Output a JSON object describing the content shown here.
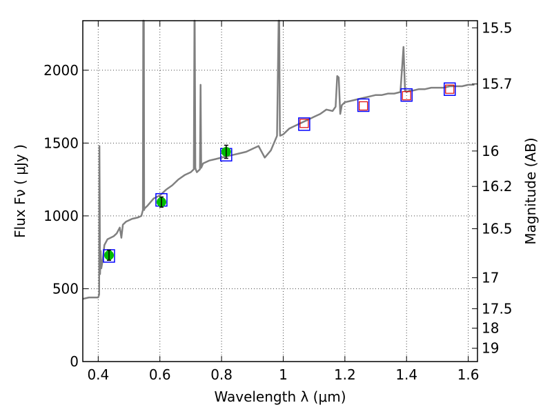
{
  "chart_data": {
    "type": "line",
    "xlabel": "Wavelength  λ (μm)",
    "ylabel": "Flux  Fν  ( μJy )",
    "y2label": "Magnitude (AB)",
    "xlim": [
      0.35,
      1.63
    ],
    "ylim": [
      0,
      2340
    ],
    "grid": true,
    "x_ticks": [
      0.4,
      0.6,
      0.8,
      1.0,
      1.2,
      1.4,
      1.6
    ],
    "x_tick_labels": [
      "0.4",
      "0.6",
      "0.8",
      "1",
      "1.2",
      "1.4",
      "1.6"
    ],
    "y_ticks": [
      0,
      500,
      1000,
      1500,
      2000
    ],
    "y_tick_labels": [
      "0",
      "500",
      "1000",
      "1500",
      "2000"
    ],
    "y2_ticks": [
      15.5,
      15.7,
      16,
      16.2,
      16.5,
      17,
      17.5,
      18,
      19
    ],
    "y2_tick_labels": [
      "15.5",
      "15.7",
      "16",
      "16.2",
      "16.5",
      "17",
      "17.5",
      "18",
      "19"
    ],
    "colors": {
      "spectrum": "#808080",
      "observed_fill": "#00bb00",
      "model_box": "#0000ff",
      "nir_box": "#dd0000",
      "grid": "#444444"
    },
    "spectrum": {
      "x": [
        0.35,
        0.37,
        0.39,
        0.4,
        0.403,
        0.404,
        0.406,
        0.408,
        0.41,
        0.415,
        0.42,
        0.43,
        0.44,
        0.45,
        0.46,
        0.47,
        0.475,
        0.48,
        0.49,
        0.5,
        0.51,
        0.52,
        0.53,
        0.54,
        0.545,
        0.546,
        0.548,
        0.549,
        0.55,
        0.56,
        0.58,
        0.6,
        0.62,
        0.64,
        0.66,
        0.68,
        0.7,
        0.71,
        0.712,
        0.713,
        0.715,
        0.716,
        0.72,
        0.73,
        0.732,
        0.734,
        0.736,
        0.74,
        0.76,
        0.78,
        0.8,
        0.82,
        0.84,
        0.86,
        0.88,
        0.9,
        0.92,
        0.94,
        0.96,
        0.98,
        0.985,
        0.987,
        0.989,
        0.99,
        1.0,
        1.02,
        1.04,
        1.06,
        1.08,
        1.1,
        1.12,
        1.14,
        1.16,
        1.17,
        1.175,
        1.18,
        1.185,
        1.19,
        1.2,
        1.22,
        1.24,
        1.26,
        1.28,
        1.3,
        1.32,
        1.34,
        1.36,
        1.38,
        1.39,
        1.395,
        1.4,
        1.41,
        1.42,
        1.44,
        1.46,
        1.48,
        1.5,
        1.52,
        1.54,
        1.56,
        1.58,
        1.6,
        1.62
      ],
      "y": [
        430,
        440,
        440,
        440,
        460,
        1480,
        600,
        760,
        640,
        700,
        800,
        840,
        850,
        860,
        880,
        920,
        850,
        940,
        960,
        970,
        980,
        985,
        990,
        1000,
        1040,
        2340,
        2340,
        1040,
        1050,
        1070,
        1120,
        1140,
        1180,
        1210,
        1250,
        1280,
        1300,
        1320,
        2340,
        2340,
        1330,
        1320,
        1300,
        1320,
        1900,
        1330,
        1340,
        1360,
        1380,
        1390,
        1400,
        1410,
        1420,
        1430,
        1440,
        1460,
        1480,
        1400,
        1450,
        1550,
        2340,
        2340,
        1600,
        1550,
        1560,
        1600,
        1620,
        1640,
        1660,
        1680,
        1700,
        1730,
        1720,
        1750,
        1960,
        1950,
        1700,
        1760,
        1780,
        1790,
        1800,
        1810,
        1820,
        1830,
        1830,
        1840,
        1840,
        1850,
        2160,
        1860,
        1850,
        1860,
        1860,
        1870,
        1870,
        1880,
        1880,
        1880,
        1890,
        1890,
        1890,
        1900,
        1900
      ]
    },
    "series": [
      {
        "marker": "green-filled-circle",
        "x": [
          0.435,
          0.605,
          0.815
        ],
        "values": [
          730,
          1095,
          1440
        ],
        "errors": [
          35,
          35,
          45
        ]
      },
      {
        "marker": "blue-open-square",
        "x": [
          0.435,
          0.605,
          0.815,
          1.068,
          1.26,
          1.4,
          1.54
        ],
        "values": [
          725,
          1110,
          1420,
          1630,
          1760,
          1830,
          1870
        ]
      },
      {
        "marker": "red-open-square",
        "x": [
          1.068,
          1.26,
          1.4,
          1.54
        ],
        "values": [
          1635,
          1755,
          1825,
          1870
        ]
      }
    ]
  }
}
